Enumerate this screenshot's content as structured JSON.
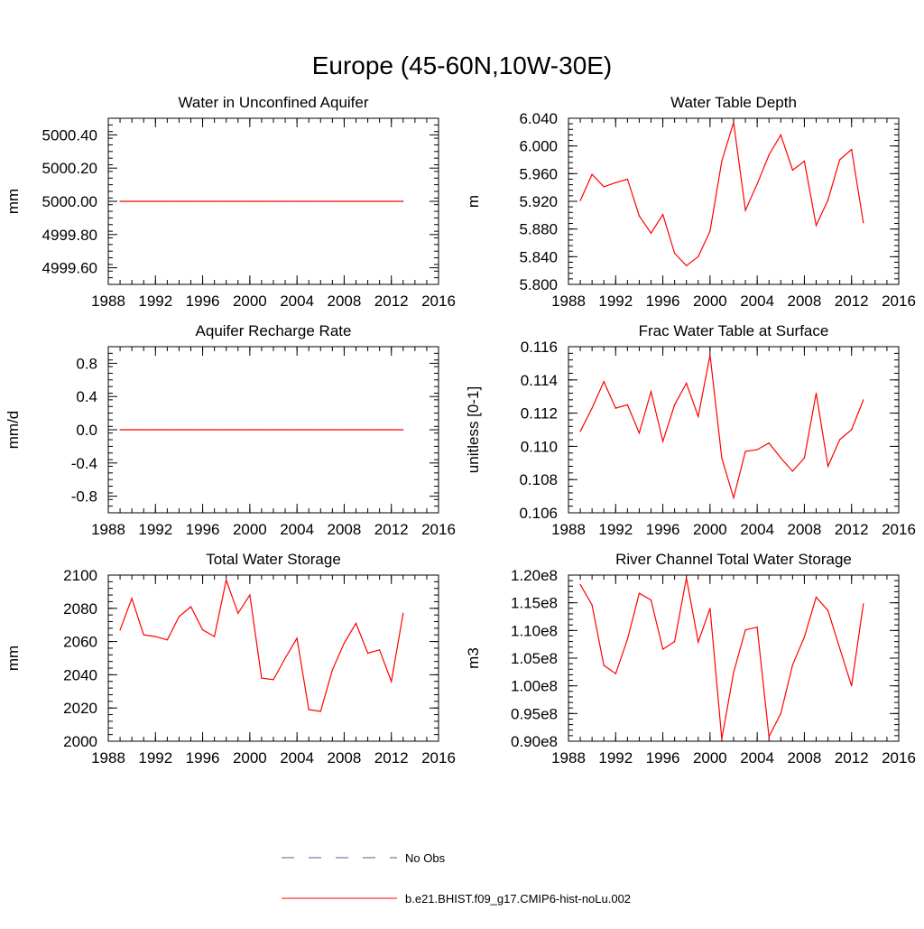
{
  "figure": {
    "title": "Europe (45-60N,10W-30E)"
  },
  "legend": {
    "entries": [
      {
        "label": "No Obs",
        "color": "#5a5a9a",
        "style": "dashed"
      },
      {
        "label": "b.e21.BHIST.f09_g17.CMIP6-hist-noLu.002",
        "color": "#ff0000",
        "style": "solid"
      }
    ]
  },
  "chart_data": [
    {
      "id": "water-in-unconfined-aquifer",
      "type": "line",
      "title": "Water in Unconfined Aquifer",
      "ylabel": "mm",
      "xlim": [
        1988,
        2016
      ],
      "xticks": [
        1988,
        1992,
        1996,
        2000,
        2004,
        2008,
        2012,
        2016
      ],
      "ylim": [
        4999.5,
        5000.5
      ],
      "yticks": [
        4999.6,
        4999.8,
        5000.0,
        5000.2,
        5000.4
      ],
      "ytick_labels": [
        "4999.60",
        "4999.80",
        "5000.00",
        "5000.20",
        "5000.40"
      ],
      "series": [
        {
          "color": "#ff0000",
          "x": [
            1989,
            1990,
            1991,
            1992,
            1993,
            1994,
            1995,
            1996,
            1997,
            1998,
            1999,
            2000,
            2001,
            2002,
            2003,
            2004,
            2005,
            2006,
            2007,
            2008,
            2009,
            2010,
            2011,
            2012,
            2013
          ],
          "values": [
            5000,
            5000,
            5000,
            5000,
            5000,
            5000,
            5000,
            5000,
            5000,
            5000,
            5000,
            5000,
            5000,
            5000,
            5000,
            5000,
            5000,
            5000,
            5000,
            5000,
            5000,
            5000,
            5000,
            5000,
            5000
          ]
        }
      ]
    },
    {
      "id": "water-table-depth",
      "type": "line",
      "title": "Water Table Depth",
      "ylabel": "m",
      "xlim": [
        1988,
        2016
      ],
      "xticks": [
        1988,
        1992,
        1996,
        2000,
        2004,
        2008,
        2012,
        2016
      ],
      "ylim": [
        5.8,
        6.04
      ],
      "yticks": [
        5.8,
        5.84,
        5.88,
        5.92,
        5.96,
        6.0,
        6.04
      ],
      "ytick_labels": [
        "5.800",
        "5.840",
        "5.880",
        "5.920",
        "5.960",
        "6.000",
        "6.040"
      ],
      "series": [
        {
          "color": "#ff0000",
          "x": [
            1989,
            1990,
            1991,
            1992,
            1993,
            1994,
            1995,
            1996,
            1997,
            1998,
            1999,
            2000,
            2001,
            2002,
            2003,
            2004,
            2005,
            2006,
            2007,
            2008,
            2009,
            2010,
            2011,
            2012,
            2013
          ],
          "values": [
            5.921,
            5.959,
            5.941,
            5.947,
            5.952,
            5.899,
            5.874,
            5.901,
            5.845,
            5.827,
            5.84,
            5.877,
            5.978,
            6.034,
            5.907,
            5.945,
            5.987,
            6.016,
            5.965,
            5.978,
            5.885,
            5.922,
            5.98,
            5.995,
            5.889
          ]
        }
      ]
    },
    {
      "id": "aquifer-recharge-rate",
      "type": "line",
      "title": "Aquifer Recharge Rate",
      "ylabel": "mm/d",
      "xlim": [
        1988,
        2016
      ],
      "xticks": [
        1988,
        1992,
        1996,
        2000,
        2004,
        2008,
        2012,
        2016
      ],
      "ylim": [
        -1.0,
        1.0
      ],
      "yticks": [
        -0.8,
        -0.4,
        0.0,
        0.4,
        0.8
      ],
      "ytick_labels": [
        "-0.8",
        "-0.4",
        "0.0",
        "0.4",
        "0.8"
      ],
      "series": [
        {
          "color": "#ff0000",
          "x": [
            1989,
            1990,
            1991,
            1992,
            1993,
            1994,
            1995,
            1996,
            1997,
            1998,
            1999,
            2000,
            2001,
            2002,
            2003,
            2004,
            2005,
            2006,
            2007,
            2008,
            2009,
            2010,
            2011,
            2012,
            2013
          ],
          "values": [
            0,
            0,
            0,
            0,
            0,
            0,
            0,
            0,
            0,
            0,
            0,
            0,
            0,
            0,
            0,
            0,
            0,
            0,
            0,
            0,
            0,
            0,
            0,
            0,
            0
          ]
        }
      ]
    },
    {
      "id": "frac-water-table-at-surface",
      "type": "line",
      "title": "Frac Water Table at Surface",
      "ylabel": "unitless [0-1]",
      "xlim": [
        1988,
        2016
      ],
      "xticks": [
        1988,
        1992,
        1996,
        2000,
        2004,
        2008,
        2012,
        2016
      ],
      "ylim": [
        0.106,
        0.116
      ],
      "yticks": [
        0.106,
        0.108,
        0.11,
        0.112,
        0.114,
        0.116
      ],
      "ytick_labels": [
        "0.106",
        "0.108",
        "0.110",
        "0.112",
        "0.114",
        "0.116"
      ],
      "series": [
        {
          "color": "#ff0000",
          "x": [
            1989,
            1990,
            1991,
            1992,
            1993,
            1994,
            1995,
            1996,
            1997,
            1998,
            1999,
            2000,
            2001,
            2002,
            2003,
            2004,
            2005,
            2006,
            2007,
            2008,
            2009,
            2010,
            2011,
            2012,
            2013
          ],
          "values": [
            0.1109,
            0.1123,
            0.1139,
            0.1123,
            0.1125,
            0.1108,
            0.1133,
            0.1103,
            0.1125,
            0.1138,
            0.1118,
            0.1155,
            0.1093,
            0.1069,
            0.1097,
            0.1098,
            0.1102,
            0.1093,
            0.1085,
            0.1093,
            0.1132,
            0.1088,
            0.1104,
            0.111,
            0.1128
          ]
        }
      ]
    },
    {
      "id": "total-water-storage",
      "type": "line",
      "title": "Total Water Storage",
      "ylabel": "mm",
      "xlim": [
        1988,
        2016
      ],
      "xticks": [
        1988,
        1992,
        1996,
        2000,
        2004,
        2008,
        2012,
        2016
      ],
      "ylim": [
        2000,
        2100
      ],
      "yticks": [
        2000,
        2020,
        2040,
        2060,
        2080,
        2100
      ],
      "ytick_labels": [
        "2000",
        "2020",
        "2040",
        "2060",
        "2080",
        "2100"
      ],
      "series": [
        {
          "color": "#ff0000",
          "x": [
            1989,
            1990,
            1991,
            1992,
            1993,
            1994,
            1995,
            1996,
            1997,
            1998,
            1999,
            2000,
            2001,
            2002,
            2003,
            2004,
            2005,
            2006,
            2007,
            2008,
            2009,
            2010,
            2011,
            2012,
            2013
          ],
          "values": [
            2067,
            2086,
            2064,
            2063,
            2061,
            2075,
            2081,
            2067,
            2063,
            2097,
            2077,
            2088,
            2038,
            2037,
            2050,
            2062,
            2019,
            2018,
            2043,
            2059,
            2071,
            2053,
            2055,
            2036,
            2077
          ]
        }
      ]
    },
    {
      "id": "river-channel-total-water-storage",
      "type": "line",
      "title": "River Channel Total Water Storage",
      "ylabel": "m3",
      "xlim": [
        1988,
        2016
      ],
      "xticks": [
        1988,
        1992,
        1996,
        2000,
        2004,
        2008,
        2012,
        2016
      ],
      "ylim": [
        90000000,
        120000000
      ],
      "yticks": [
        90000000,
        95000000,
        100000000,
        105000000,
        110000000,
        115000000,
        120000000
      ],
      "ytick_labels": [
        "0.90e8",
        "0.95e8",
        "1.00e8",
        "1.05e8",
        "1.10e8",
        "1.15e8",
        "1.20e8"
      ],
      "series": [
        {
          "color": "#ff0000",
          "x": [
            1989,
            1990,
            1991,
            1992,
            1993,
            1994,
            1995,
            1996,
            1997,
            1998,
            1999,
            2000,
            2001,
            2002,
            2003,
            2004,
            2005,
            2006,
            2007,
            2008,
            2009,
            2010,
            2011,
            2012,
            2013
          ],
          "values": [
            118300000,
            114600000,
            103700000,
            102200000,
            108400000,
            116700000,
            115500000,
            106600000,
            108000000,
            119500000,
            107900000,
            114000000,
            90400000,
            102400000,
            110100000,
            110600000,
            90800000,
            95000000,
            103800000,
            108800000,
            116000000,
            113600000,
            106800000,
            100000000,
            114800000
          ]
        }
      ]
    }
  ]
}
